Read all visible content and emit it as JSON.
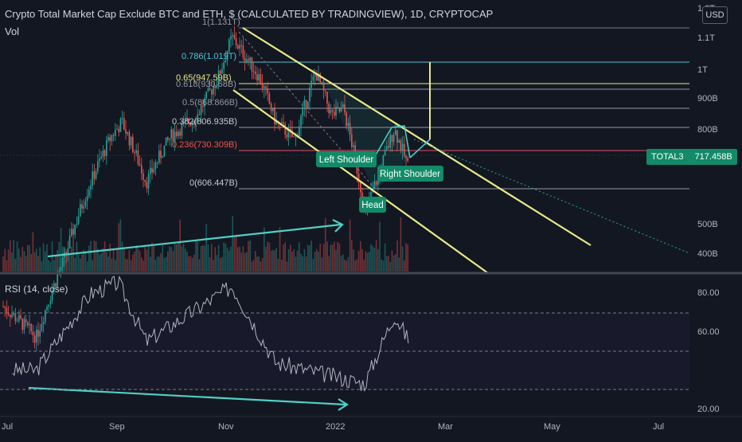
{
  "header": {
    "title": "Crypto Total Market Cap Exclude BTC and ETH, $ (CALCULATED BY TRADINGVIEW), 1D, CRYPTOCAP",
    "volume_label": "Vol",
    "currency_button": "USD"
  },
  "price_badge": {
    "symbol": "TOTAL3",
    "value": "717.458B"
  },
  "rsi": {
    "title": "RSI (14, close)",
    "levels": [
      "80.00",
      "60.00",
      "20.00"
    ]
  },
  "price_axis_labels": [
    "1.2T",
    "1.1T",
    "1T",
    "900B",
    "800B",
    "500B",
    "400B"
  ],
  "time_axis_labels": [
    "Jul",
    "Sep",
    "Nov",
    "2022",
    "Mar",
    "May",
    "Jul"
  ],
  "fib_levels": [
    {
      "label": "1(1.131T)",
      "value": 1131
    },
    {
      "label": "0.786(1.019T)",
      "value": 1019
    },
    {
      "label": "0.65(947.59B)",
      "value": 947.59
    },
    {
      "label": "0.618(930.68B)",
      "value": 930.68
    },
    {
      "label": "0.5(868.866B)",
      "value": 868.866
    },
    {
      "label": "0.382(806.935B)",
      "value": 806.935
    },
    {
      "label": "0.236(730.309B)",
      "value": 730.309
    },
    {
      "label": "0(606.447B)",
      "value": 606.447
    }
  ],
  "annotations": {
    "left_shoulder": "Left Shoulder",
    "head": "Head",
    "right_shoulder": "Right Shoulder"
  },
  "colors": {
    "background": "#131722",
    "up": "#26a69a",
    "down": "#ef5350",
    "channel": "#e8ea86",
    "arrow": "#4fd1c5",
    "rsi_line": "#b2b5be",
    "badge": "#138a68"
  },
  "chart_data": {
    "type": "candlestick",
    "title": "Crypto Total Market Cap Exclude BTC and ETH, $ (CALCULATED BY TRADINGVIEW), 1D, CRYPTOCAP",
    "x_range": [
      "2021-07",
      "2022-07"
    ],
    "y_range_billion_usd": [
      380,
      1200
    ],
    "close_series": [
      {
        "x": "2021-07-01",
        "y": 440
      },
      {
        "x": "2021-07-20",
        "y": 395
      },
      {
        "x": "2021-08-05",
        "y": 520
      },
      {
        "x": "2021-08-20",
        "y": 680
      },
      {
        "x": "2021-09-01",
        "y": 800
      },
      {
        "x": "2021-09-07",
        "y": 840
      },
      {
        "x": "2021-09-21",
        "y": 680
      },
      {
        "x": "2021-10-05",
        "y": 800
      },
      {
        "x": "2021-10-20",
        "y": 860
      },
      {
        "x": "2021-11-01",
        "y": 980
      },
      {
        "x": "2021-11-09",
        "y": 1131
      },
      {
        "x": "2021-11-25",
        "y": 980
      },
      {
        "x": "2021-12-04",
        "y": 840
      },
      {
        "x": "2021-12-15",
        "y": 790
      },
      {
        "x": "2021-12-27",
        "y": 1000
      },
      {
        "x": "2022-01-05",
        "y": 860
      },
      {
        "x": "2022-01-12",
        "y": 880
      },
      {
        "x": "2022-01-22",
        "y": 660
      },
      {
        "x": "2022-01-24",
        "y": 606
      },
      {
        "x": "2022-02-01",
        "y": 700
      },
      {
        "x": "2022-02-10",
        "y": 820
      },
      {
        "x": "2022-02-18",
        "y": 717
      }
    ],
    "rsi_series": [
      {
        "x": "2021-07-20",
        "y": 30
      },
      {
        "x": "2021-08-20",
        "y": 70
      },
      {
        "x": "2021-09-05",
        "y": 76
      },
      {
        "x": "2021-09-21",
        "y": 45
      },
      {
        "x": "2021-11-09",
        "y": 74
      },
      {
        "x": "2021-12-04",
        "y": 34
      },
      {
        "x": "2022-01-24",
        "y": 23
      },
      {
        "x": "2022-02-10",
        "y": 59
      },
      {
        "x": "2022-02-18",
        "y": 46
      }
    ]
  }
}
